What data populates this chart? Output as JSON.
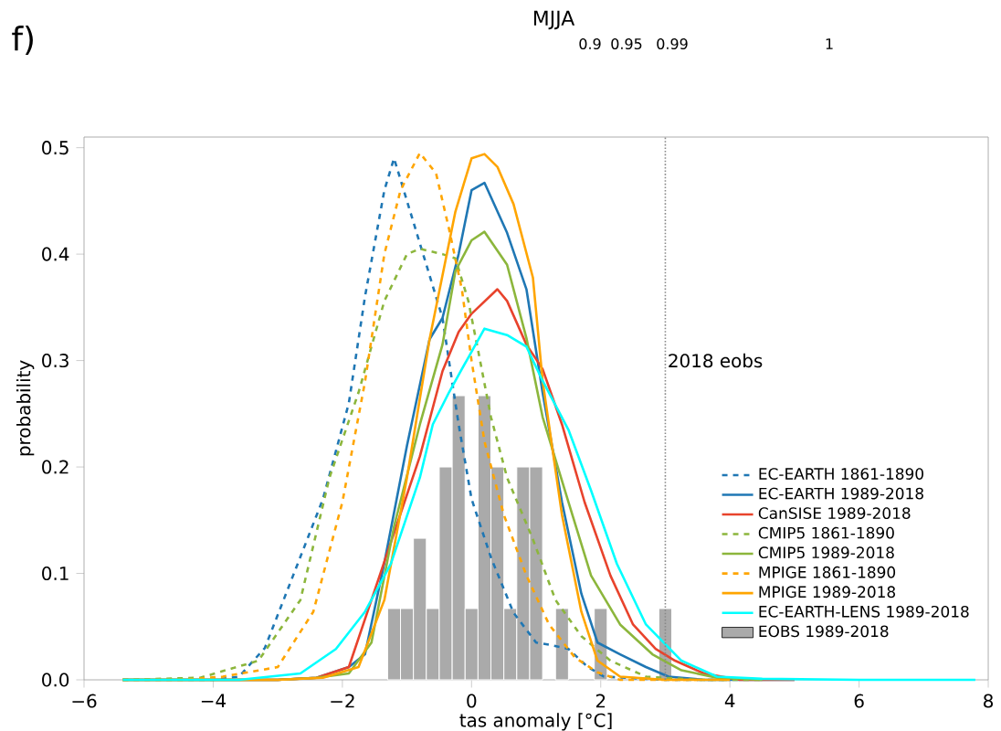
{
  "chart_data": [
    {
      "type": "other",
      "title": "MJJA",
      "annotations": [
        "f)",
        "0.9",
        "0.95",
        "0.99",
        "1"
      ]
    },
    {
      "type": "line",
      "xlabel": "tas anomaly [°C]",
      "ylabel": "probability",
      "xlim": [
        -6,
        8
      ],
      "ylim": [
        0,
        0.51
      ],
      "xticks": [
        {
          "value": -6,
          "label": "−6"
        },
        {
          "value": -4,
          "label": "−4"
        },
        {
          "value": -2,
          "label": "−2"
        },
        0,
        2,
        4,
        6,
        8
      ],
      "yticks": [
        {
          "value": 0,
          "label": "0.0"
        },
        0.1,
        0.2,
        0.3,
        0.4,
        0.5
      ],
      "legend": "right",
      "ref_lines": [
        {
          "axis": "x",
          "value": 3,
          "label": "2018 eobs",
          "color": "#888888",
          "line_style": "dotted"
        }
      ],
      "series": [
        {
          "name": "EC-EARTH 1861-1890",
          "color": "#1f77b4",
          "line_style": "dashed",
          "x": [
            -5.4,
            -4.0,
            -3.6,
            -3.2,
            -2.75,
            -2.3,
            -1.9,
            -1.65,
            -1.35,
            -1.2,
            -0.9,
            -0.65,
            -0.45,
            -0.2,
            0.0,
            0.3,
            0.65,
            1.0,
            1.2,
            1.5,
            1.8,
            2.05,
            3.0,
            4.0
          ],
          "values": [
            0,
            0,
            0.003,
            0.03,
            0.1,
            0.17,
            0.26,
            0.36,
            0.46,
            0.49,
            0.43,
            0.38,
            0.34,
            0.24,
            0.17,
            0.115,
            0.063,
            0.035,
            0.033,
            0.029,
            0.012,
            0.003,
            0,
            0
          ]
        },
        {
          "name": "EC-EARTH 1989-2018",
          "color": "#1f77b4",
          "line_style": "solid",
          "x": [
            -5.4,
            -3.0,
            -2.4,
            -1.9,
            -1.65,
            -1.35,
            -1.0,
            -0.65,
            -0.45,
            -0.2,
            0.0,
            0.2,
            0.55,
            0.85,
            1.1,
            1.4,
            1.7,
            1.95,
            2.3,
            2.7,
            3.05,
            3.6,
            5.0
          ],
          "values": [
            0,
            0,
            0.002,
            0.012,
            0.024,
            0.11,
            0.22,
            0.32,
            0.34,
            0.4,
            0.46,
            0.467,
            0.42,
            0.367,
            0.27,
            0.167,
            0.081,
            0.035,
            0.024,
            0.012,
            0.003,
            0,
            0
          ]
        },
        {
          "name": "CanSISE 1989-2018",
          "color": "#e8432c",
          "line_style": "solid",
          "x": [
            -5.4,
            -3.0,
            -2.4,
            -1.9,
            -1.55,
            -1.2,
            -0.8,
            -0.45,
            -0.2,
            0.0,
            0.4,
            0.55,
            0.85,
            1.1,
            1.4,
            1.75,
            2.15,
            2.5,
            2.85,
            3.15,
            3.6,
            4.15,
            5.0
          ],
          "values": [
            0,
            0,
            0.002,
            0.012,
            0.075,
            0.138,
            0.21,
            0.29,
            0.327,
            0.344,
            0.367,
            0.356,
            0.315,
            0.292,
            0.24,
            0.167,
            0.098,
            0.052,
            0.029,
            0.018,
            0.006,
            0,
            0
          ]
        },
        {
          "name": "CMIP5 1861-1890",
          "color": "#8cb63c",
          "line_style": "dashed",
          "x": [
            -5.4,
            -4.2,
            -3.3,
            -2.65,
            -2.2,
            -1.75,
            -1.35,
            -1.0,
            -0.8,
            -0.45,
            -0.25,
            -0.05,
            0.1,
            0.3,
            0.55,
            0.95,
            1.3,
            1.7,
            2.15,
            2.7,
            3.5,
            4.5
          ],
          "values": [
            0,
            0.002,
            0.018,
            0.075,
            0.19,
            0.27,
            0.356,
            0.4,
            0.405,
            0.4,
            0.396,
            0.356,
            0.31,
            0.247,
            0.19,
            0.132,
            0.075,
            0.041,
            0.018,
            0.003,
            0,
            0
          ]
        },
        {
          "name": "CMIP5 1989-2018",
          "color": "#8cb63c",
          "line_style": "solid",
          "x": [
            -5.4,
            -3.0,
            -2.4,
            -1.9,
            -1.55,
            -1.2,
            -0.8,
            -0.45,
            -0.25,
            0.0,
            0.2,
            0.55,
            0.85,
            1.1,
            1.5,
            1.85,
            2.3,
            2.8,
            3.25,
            3.8,
            4.5
          ],
          "values": [
            0,
            0,
            0.002,
            0.006,
            0.035,
            0.144,
            0.24,
            0.315,
            0.384,
            0.413,
            0.421,
            0.39,
            0.321,
            0.247,
            0.167,
            0.098,
            0.052,
            0.024,
            0.009,
            0.002,
            0
          ]
        },
        {
          "name": "MPIGE 1861-1890",
          "color": "#ffa500",
          "line_style": "dashed",
          "x": [
            -5.4,
            -4.5,
            -3.85,
            -3.0,
            -2.45,
            -2.0,
            -1.65,
            -1.35,
            -1.1,
            -0.8,
            -0.55,
            -0.35,
            -0.15,
            0.0,
            0.2,
            0.5,
            0.85,
            1.2,
            1.6,
            1.95,
            2.3,
            3.5
          ],
          "values": [
            0,
            0,
            0.003,
            0.012,
            0.064,
            0.167,
            0.28,
            0.4,
            0.46,
            0.495,
            0.476,
            0.424,
            0.367,
            0.3,
            0.224,
            0.155,
            0.098,
            0.052,
            0.021,
            0.007,
            0,
            0
          ]
        },
        {
          "name": "MPIGE 1989-2018",
          "color": "#ffa500",
          "line_style": "solid",
          "x": [
            -5.4,
            -3.0,
            -2.3,
            -1.75,
            -1.35,
            -1.0,
            -0.65,
            -0.25,
            0.0,
            0.2,
            0.4,
            0.65,
            0.95,
            1.1,
            1.4,
            1.7,
            1.95,
            2.3,
            3.0,
            4.0
          ],
          "values": [
            0,
            0,
            0.002,
            0.012,
            0.075,
            0.19,
            0.32,
            0.44,
            0.49,
            0.494,
            0.482,
            0.447,
            0.378,
            0.281,
            0.155,
            0.064,
            0.018,
            0.003,
            0,
            0
          ]
        },
        {
          "name": "EC-EARTH-LENS 1989-2018",
          "color": "#00ffff",
          "line_style": "solid",
          "x": [
            -5.4,
            -3.6,
            -2.65,
            -2.1,
            -1.65,
            -1.25,
            -0.8,
            -0.6,
            -0.35,
            -0.15,
            0.2,
            0.55,
            0.85,
            1.1,
            1.5,
            1.85,
            2.25,
            2.7,
            3.25,
            3.8,
            4.5,
            6.0,
            7.8
          ],
          "values": [
            0,
            0,
            0.006,
            0.029,
            0.064,
            0.109,
            0.19,
            0.24,
            0.27,
            0.292,
            0.33,
            0.324,
            0.313,
            0.281,
            0.235,
            0.178,
            0.109,
            0.052,
            0.018,
            0.003,
            0.001,
            0,
            0
          ]
        },
        {
          "name": "EOBS 1989-2018",
          "type": "histogram",
          "color": "#aaaaaa",
          "bins": [
            -1.3,
            -1.1,
            -0.9,
            -0.7,
            -0.5,
            -0.3,
            -0.1,
            0.1,
            0.3,
            0.5,
            0.7,
            0.9,
            1.1,
            1.3,
            1.5,
            1.7,
            1.9,
            2.1,
            2.3,
            2.5,
            2.7,
            2.9,
            3.1
          ],
          "values": [
            0.067,
            0.067,
            0.133,
            0.067,
            0.2,
            0.267,
            0.067,
            0.267,
            0.2,
            0.067,
            0.2,
            0.2,
            0,
            0.067,
            0,
            0,
            0.067,
            0,
            0,
            0,
            0,
            0.067
          ]
        }
      ]
    }
  ]
}
